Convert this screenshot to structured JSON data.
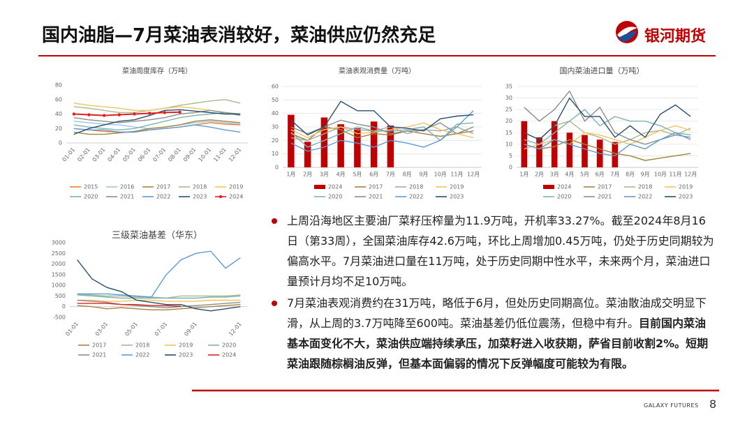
{
  "header": {
    "title": "国内油脂—7月菜油表消较好，菜油供应仍然充足",
    "logo_text": "银河期货"
  },
  "bullets": [
    [
      {
        "text": "上周沿海地区主要油厂菜籽压榨量为11.9万吨，开机率33.27%。截至2024年8月16日（第33周），全国菜油库存42.6万吨，环比上周增加0.45万吨，仍处于历史同期较为偏高水平。7月菜油进口量在11万吨，处于历史同期中性水平，未来两个月，菜油进口量预计月均不足10万吨。"
      }
    ],
    [
      {
        "text": "7月菜油表观消费约在31万吨，略低于6月，但处历史同期高位。菜油散油成交明显下滑，从上周的3.7万吨降至600吨。菜油基差仍低位震荡，但稳中有升。"
      },
      {
        "text": "目前国内菜油基本面变化不大，菜油供应端持续承压，加菜籽进入收获期，萨省目前收割2%。短期菜油跟随棕榈油反弹，但基本面偏弱的情况下反弹幅度可能较为有限。",
        "bold": true
      }
    ]
  ],
  "footer": {
    "brand": "GALAXY FUTURES",
    "page": "8"
  },
  "chart_data": [
    {
      "type": "line",
      "title": "菜油周度库存（万吨）",
      "categories": [
        "01-01",
        "02-01",
        "03-01",
        "04-01",
        "05-01",
        "06-01",
        "07-01",
        "08-01",
        "09-01",
        "10-01",
        "11-01",
        "12-01"
      ],
      "ylim": [
        0,
        80
      ],
      "yticks": [
        0,
        20,
        40,
        60,
        80
      ],
      "grid": false,
      "series": [
        {
          "name": "2015",
          "color": "#ed7d31",
          "values": [
            20,
            18,
            16,
            15,
            15,
            18,
            20,
            22,
            25,
            28,
            26,
            25
          ]
        },
        {
          "name": "2016",
          "color": "#9dc3e6",
          "values": [
            30,
            28,
            26,
            25,
            22,
            20,
            22,
            25,
            28,
            30,
            28,
            26
          ]
        },
        {
          "name": "2017",
          "color": "#a5823a",
          "values": [
            15,
            12,
            12,
            14,
            16,
            20,
            22,
            25,
            30,
            32,
            30,
            28
          ]
        },
        {
          "name": "2018",
          "color": "#a9b98e",
          "values": [
            50,
            48,
            45,
            42,
            42,
            45,
            48,
            52,
            55,
            58,
            60,
            55
          ]
        },
        {
          "name": "2019",
          "color": "#f4c25b",
          "values": [
            55,
            52,
            50,
            48,
            45,
            45,
            48,
            50,
            48,
            45,
            42,
            40
          ]
        },
        {
          "name": "2020",
          "color": "#7fb3b0",
          "values": [
            25,
            22,
            20,
            18,
            20,
            25,
            30,
            35,
            38,
            40,
            42,
            40
          ]
        },
        {
          "name": "2021",
          "color": "#8c8c8c",
          "values": [
            35,
            32,
            30,
            28,
            30,
            32,
            35,
            40,
            42,
            45,
            42,
            38
          ]
        },
        {
          "name": "2022",
          "color": "#5b9bd5",
          "values": [
            20,
            18,
            18,
            15,
            15,
            18,
            20,
            22,
            25,
            22,
            18,
            15
          ]
        },
        {
          "name": "2023",
          "color": "#264e70",
          "values": [
            12,
            20,
            25,
            30,
            32,
            38,
            45,
            46,
            44,
            42,
            40,
            40
          ]
        },
        {
          "name": "2024",
          "color": "#e02020",
          "marker": true,
          "values": [
            40,
            39,
            38,
            39,
            40,
            41,
            42,
            42.6,
            null,
            null,
            null,
            null
          ]
        }
      ]
    },
    {
      "type": "combo",
      "title": "菜油表观消费量（万吨）",
      "categories": [
        "1月",
        "2月",
        "3月",
        "4月",
        "5月",
        "6月",
        "7月",
        "8月",
        "9月",
        "10月",
        "11月",
        "12月"
      ],
      "ylim": [
        0,
        60
      ],
      "yticks": [
        0,
        10,
        20,
        30,
        40,
        50,
        60
      ],
      "grid": true,
      "series": [
        {
          "name": "2024",
          "color": "#c00000",
          "type": "bar",
          "values": [
            39,
            19,
            37,
            32,
            29,
            34,
            31,
            null,
            null,
            null,
            null,
            null
          ]
        },
        {
          "name": "2017",
          "color": "#a5823a",
          "type": "line",
          "values": [
            25,
            20,
            30,
            28,
            22,
            25,
            24,
            27,
            25,
            23,
            25,
            27
          ]
        },
        {
          "name": "2018",
          "color": "#a6a6a6",
          "type": "line",
          "values": [
            22,
            20,
            25,
            30,
            28,
            27,
            30,
            25,
            28,
            27,
            30,
            25
          ]
        },
        {
          "name": "2019",
          "color": "#f4c25b",
          "type": "line",
          "values": [
            28,
            22,
            28,
            30,
            25,
            26,
            28,
            30,
            33,
            28,
            25,
            22
          ]
        },
        {
          "name": "2020",
          "color": "#7fb3b0",
          "type": "line",
          "values": [
            26,
            15,
            20,
            25,
            30,
            27,
            27,
            28,
            30,
            20,
            32,
            33
          ]
        },
        {
          "name": "2021",
          "color": "#8c8c8c",
          "type": "line",
          "values": [
            30,
            25,
            30,
            35,
            32,
            30,
            25,
            27,
            28,
            33,
            25,
            30
          ]
        },
        {
          "name": "2022",
          "color": "#5b9bd5",
          "type": "line",
          "values": [
            18,
            12,
            15,
            20,
            18,
            15,
            20,
            18,
            15,
            20,
            30,
            42
          ]
        },
        {
          "name": "2023",
          "color": "#264e70",
          "type": "line",
          "values": [
            35,
            24,
            30,
            49,
            42,
            42,
            30,
            29,
            27,
            36,
            38,
            39
          ]
        }
      ]
    },
    {
      "type": "combo",
      "title": "国内菜油进口量（万吨）",
      "categories": [
        "1月",
        "2月",
        "3月",
        "4月",
        "5月",
        "6月",
        "7月",
        "8月",
        "9月",
        "10月",
        "11月",
        "12月"
      ],
      "ylim": [
        0,
        35
      ],
      "yticks": [
        0,
        5,
        10,
        15,
        20,
        25,
        30,
        35
      ],
      "grid": true,
      "series": [
        {
          "name": "2024",
          "color": "#c00000",
          "type": "bar",
          "values": [
            20,
            13,
            20,
            15,
            14,
            12,
            11,
            null,
            null,
            null,
            null,
            null
          ]
        },
        {
          "name": "2017",
          "color": "#a5823a",
          "type": "line",
          "values": [
            10,
            8,
            9,
            12,
            10,
            8,
            6,
            5,
            3,
            4,
            5,
            6
          ]
        },
        {
          "name": "2018",
          "color": "#a9b98e",
          "type": "line",
          "values": [
            15,
            12,
            18,
            20,
            15,
            13,
            10,
            12,
            15,
            16,
            14,
            17
          ]
        },
        {
          "name": "2019",
          "color": "#f4c25b",
          "type": "line",
          "values": [
            8,
            10,
            12,
            10,
            15,
            14,
            12,
            10,
            13,
            16,
            18,
            16
          ]
        },
        {
          "name": "2020",
          "color": "#7fb3b0",
          "type": "line",
          "values": [
            12,
            10,
            15,
            20,
            25,
            18,
            22,
            20,
            20,
            18,
            15,
            14
          ]
        },
        {
          "name": "2021",
          "color": "#8c8c8c",
          "type": "line",
          "values": [
            26,
            20,
            25,
            33,
            20,
            26,
            15,
            12,
            10,
            12,
            15,
            12
          ]
        },
        {
          "name": "2022",
          "color": "#5b9bd5",
          "type": "line",
          "values": [
            10,
            8,
            12,
            10,
            8,
            6,
            5,
            10,
            8,
            12,
            14,
            13
          ]
        },
        {
          "name": "2023",
          "color": "#264e70",
          "type": "line",
          "values": [
            15,
            12,
            18,
            30,
            22,
            22,
            13,
            18,
            13,
            23,
            27,
            22
          ]
        }
      ]
    },
    {
      "type": "line",
      "title": "三级菜油基差（华东）",
      "categories": [
        "01-01",
        null,
        "03-01",
        null,
        "05-01",
        null,
        "07-01",
        null,
        "09-01",
        null,
        null,
        "12-01"
      ],
      "ylim": [
        -500,
        3000
      ],
      "yticks": [
        -500,
        0,
        500,
        1000,
        1500,
        2000,
        2500,
        3000
      ],
      "grid": false,
      "series": [
        {
          "name": "2017",
          "color": "#a5823a",
          "values": [
            50,
            0,
            -100,
            -50,
            -100,
            -150,
            -150,
            -100,
            -50,
            0,
            50,
            100
          ]
        },
        {
          "name": "2018",
          "color": "#a9b98e",
          "values": [
            600,
            550,
            500,
            500,
            450,
            450,
            400,
            500,
            500,
            500,
            500,
            550
          ]
        },
        {
          "name": "2019",
          "color": "#f4c25b",
          "values": [
            300,
            300,
            250,
            250,
            300,
            300,
            250,
            250,
            250,
            300,
            300,
            300
          ]
        },
        {
          "name": "2020",
          "color": "#7fb3b0",
          "values": [
            550,
            500,
            450,
            400,
            400,
            400,
            400,
            400,
            400,
            450,
            450,
            500
          ]
        },
        {
          "name": "2021",
          "color": "#8c8c8c",
          "values": [
            300,
            250,
            200,
            100,
            50,
            0,
            -50,
            0,
            50,
            100,
            150,
            200
          ]
        },
        {
          "name": "2022",
          "color": "#5b9bd5",
          "values": [
            600,
            600,
            600,
            550,
            500,
            450,
            1500,
            2200,
            2500,
            2600,
            1800,
            2300
          ]
        },
        {
          "name": "2023",
          "color": "#264e70",
          "values": [
            2200,
            1300,
            900,
            700,
            300,
            200,
            100,
            100,
            -100,
            -200,
            -100,
            0
          ]
        },
        {
          "name": "2024",
          "color": "#e02020",
          "values": [
            150,
            150,
            150,
            100,
            100,
            50,
            50,
            20,
            null,
            null,
            null,
            null
          ]
        }
      ]
    }
  ]
}
